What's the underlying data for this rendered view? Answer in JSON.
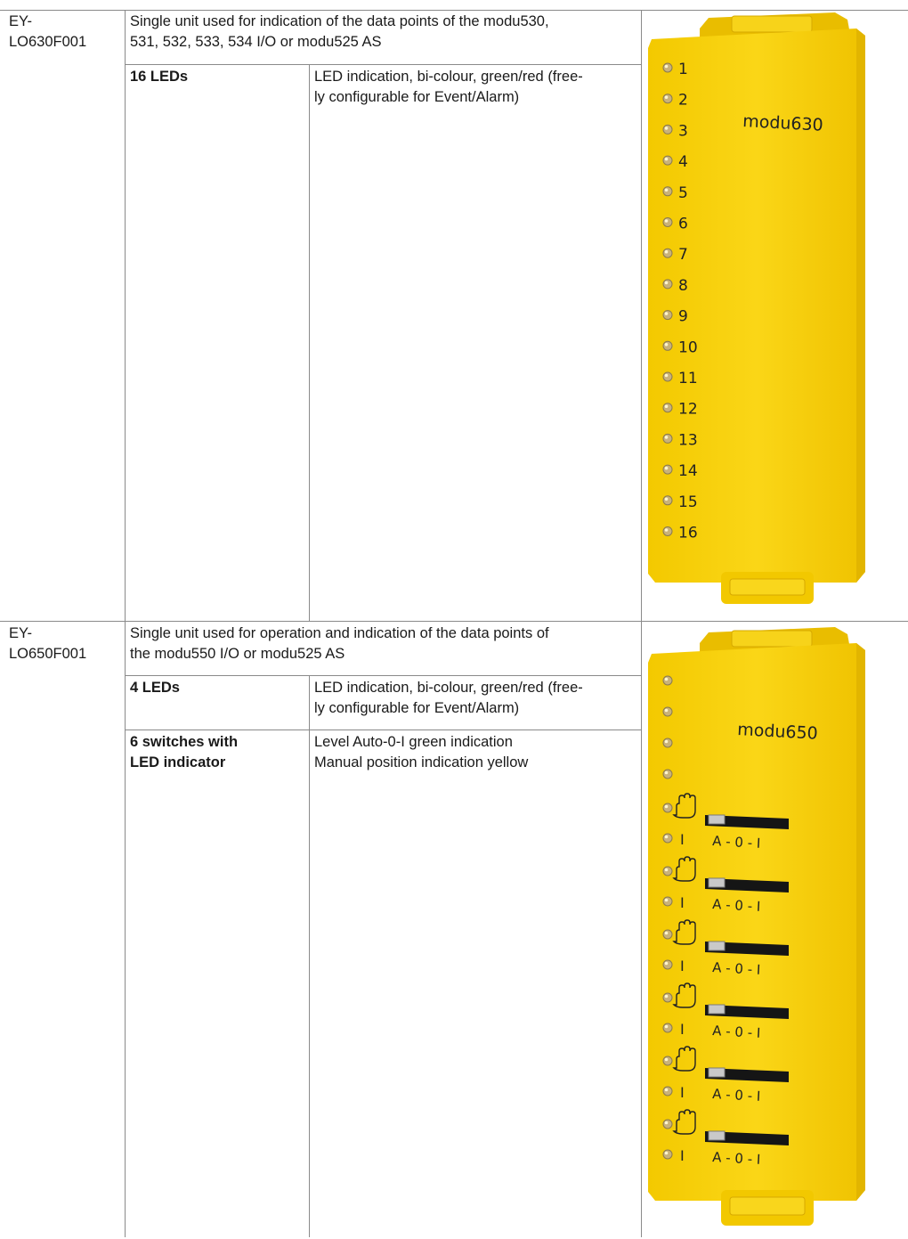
{
  "rows": [
    {
      "code": "EY-\nLO630F001",
      "description": "Single unit used for indication of the data points of the modu530,\n531, 532, 533, 534 I/O or modu525 AS",
      "features": [
        {
          "name": "16 LEDs",
          "detail": "LED indication, bi-colour, green/red (free-\nly configurable for Event/Alarm)"
        }
      ],
      "module": {
        "brand_label": "modu630",
        "led_labels": [
          "1",
          "2",
          "3",
          "4",
          "5",
          "6",
          "7",
          "8",
          "9",
          "10",
          "11",
          "12",
          "13",
          "14",
          "15",
          "16"
        ]
      }
    },
    {
      "code": "EY-\nLO650F001",
      "description": "Single unit used for operation and indication of the data points of\nthe modu550 I/O or modu525 AS",
      "features": [
        {
          "name": "4 LEDs",
          "detail": "LED indication, bi-colour, green/red (free-\nly configurable for Event/Alarm)"
        },
        {
          "name": "6 switches with\nLED indicator",
          "detail": "Level Auto-0-I green indication\nManual position indication yellow"
        }
      ],
      "module": {
        "brand_label": "modu650",
        "switch_label": "A - 0 - I",
        "on_label": "I",
        "hand_icon": "hand-icon",
        "switch_count": 6
      }
    }
  ],
  "colors": {
    "module_yellow": "#f6d00e",
    "module_dark": "#d9ae00",
    "grid": "#8a8a8a"
  }
}
